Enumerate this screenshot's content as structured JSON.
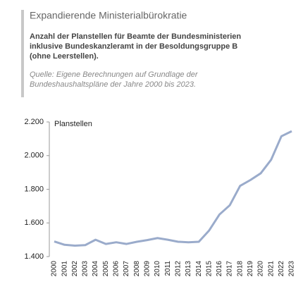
{
  "chart_data": {
    "type": "line",
    "title": "Expandierende Ministerialbürokratie",
    "subtitle": [
      "Anzahl der Planstellen für Beamte der Bundesministerien",
      "inklusive Bundeskanzleramt in der Besoldungsgruppe B",
      "(ohne Leerstellen)."
    ],
    "source": [
      "Quelle: Eigene Berechnungen auf Grundlage der",
      "Bundeshaushaltspläne der Jahre 2000 bis 2023."
    ],
    "y_label": "Planstellen",
    "categories": [
      "2000",
      "2001",
      "2002",
      "2003",
      "2004",
      "2005",
      "2006",
      "2007",
      "2008",
      "2009",
      "2010",
      "2011",
      "2012",
      "2013",
      "2014",
      "2015",
      "2016",
      "2017",
      "2018",
      "2019",
      "2020",
      "2021",
      "2022",
      "2023"
    ],
    "series": [
      {
        "name": "Planstellen",
        "color": "#9aabcb",
        "values": [
          1490,
          1470,
          1465,
          1468,
          1500,
          1475,
          1485,
          1475,
          1488,
          1498,
          1510,
          1500,
          1488,
          1485,
          1488,
          1555,
          1650,
          1705,
          1820,
          1855,
          1895,
          1975,
          2115,
          2145
        ]
      }
    ],
    "ylim": [
      1400,
      2200
    ],
    "yticks": [
      {
        "value": 1400,
        "label": "1.400"
      },
      {
        "value": 1600,
        "label": "1.600"
      },
      {
        "value": 1800,
        "label": "1.800"
      },
      {
        "value": 2000,
        "label": "2.000"
      },
      {
        "value": 2200,
        "label": "2.200"
      }
    ],
    "grid": false
  }
}
